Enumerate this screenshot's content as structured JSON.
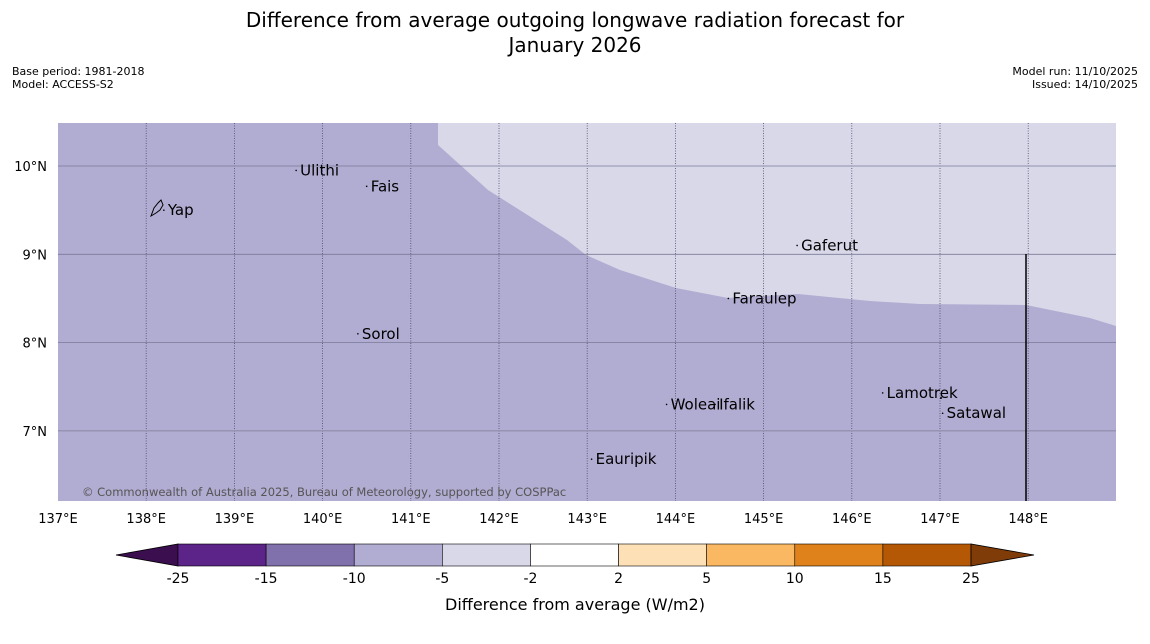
{
  "title": {
    "line1": "Difference from average outgoing longwave radiation forecast for",
    "line2": "January 2026"
  },
  "meta": {
    "base_period": "Base period: 1981-2018",
    "model": "Model: ACCESS-S2",
    "model_run": "Model run: 11/10/2025",
    "issued": "Issued: 14/10/2025"
  },
  "map": {
    "lat_labels": [
      "10°N",
      "9°N",
      "8°N",
      "7°N"
    ],
    "lon_labels": [
      "137°E",
      "138°E",
      "139°E",
      "140°E",
      "141°E",
      "142°E",
      "143°E",
      "144°E",
      "145°E",
      "146°E",
      "147°E",
      "148°E"
    ],
    "places": [
      {
        "name": "Yap",
        "lon": 138.2,
        "lat": 9.5
      },
      {
        "name": "Ulithi",
        "lon": 139.7,
        "lat": 9.95
      },
      {
        "name": "Fais",
        "lon": 140.5,
        "lat": 9.77
      },
      {
        "name": "Gaferut",
        "lon": 145.38,
        "lat": 9.1
      },
      {
        "name": "Faraulep",
        "lon": 144.6,
        "lat": 8.5
      },
      {
        "name": "Sorol",
        "lon": 140.4,
        "lat": 8.1
      },
      {
        "name": "Woleai",
        "lon": 143.9,
        "lat": 7.3
      },
      {
        "name": "Ifalik",
        "lon": 144.45,
        "lat": 7.3
      },
      {
        "name": "Lamotrek",
        "lon": 146.35,
        "lat": 7.43
      },
      {
        "name": "Satawal",
        "lon": 147.03,
        "lat": 7.2
      },
      {
        "name": "Eauripik",
        "lon": 143.05,
        "lat": 6.68
      }
    ],
    "copyright": "© Commonwealth of Australia 2025, Bureau of Meteorology, supported by COSPPac",
    "colors": {
      "fill_main": "#b1acd1",
      "fill_light": "#d8d8e9"
    }
  },
  "legend": {
    "title": "Difference from average (W/m2)",
    "ticks": [
      "-25",
      "-15",
      "-10",
      "-5",
      "-2",
      "2",
      "5",
      "10",
      "15",
      "25"
    ],
    "colors": [
      "#3b0f4f",
      "#5c2388",
      "#8070ab",
      "#b1acd1",
      "#d8d8e9",
      "#ffffff",
      "#fde0b6",
      "#fbb863",
      "#e0821b",
      "#b55806",
      "#7f3b08"
    ]
  }
}
